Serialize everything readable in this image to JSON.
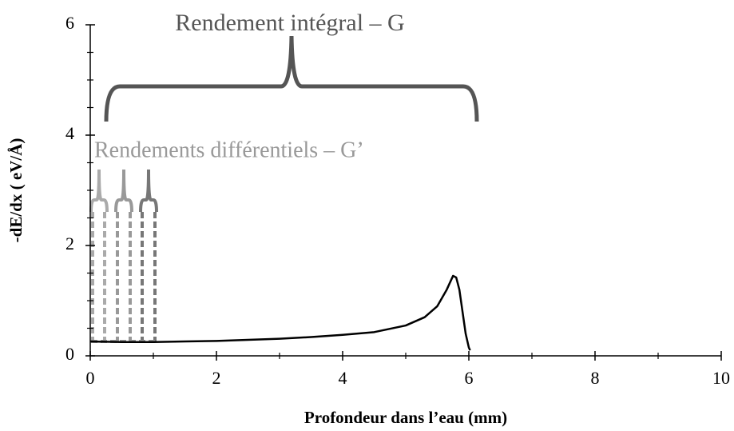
{
  "chart_data": {
    "type": "line",
    "x": [
      0,
      0.5,
      1,
      1.5,
      2,
      2.5,
      3,
      3.5,
      4,
      4.5,
      5,
      5.3,
      5.5,
      5.65,
      5.75,
      5.8,
      5.85,
      5.9,
      5.95,
      6.0,
      6.02
    ],
    "values": [
      0.26,
      0.25,
      0.25,
      0.26,
      0.27,
      0.29,
      0.31,
      0.34,
      0.38,
      0.43,
      0.55,
      0.7,
      0.9,
      1.2,
      1.45,
      1.42,
      1.2,
      0.8,
      0.4,
      0.15,
      0.1
    ],
    "color": "#000000",
    "xlim": [
      0,
      10
    ],
    "ylim": [
      0,
      6
    ],
    "xticks": [
      0,
      2,
      4,
      6,
      8,
      10
    ],
    "yticks": [
      0,
      2,
      4,
      6
    ],
    "xminorticks": [
      1,
      3,
      5,
      7,
      9
    ],
    "yminorticks": [
      0.5,
      1,
      1.5,
      2.5,
      3,
      3.5,
      4.5,
      5,
      5.5
    ],
    "xlabel": "Profondeur dans l’eau (mm)",
    "ylabel": "-dE/dx ( eV/Å)",
    "annotations": [
      "Rendement intégral – G",
      "Rendements différentiels – G’"
    ]
  }
}
